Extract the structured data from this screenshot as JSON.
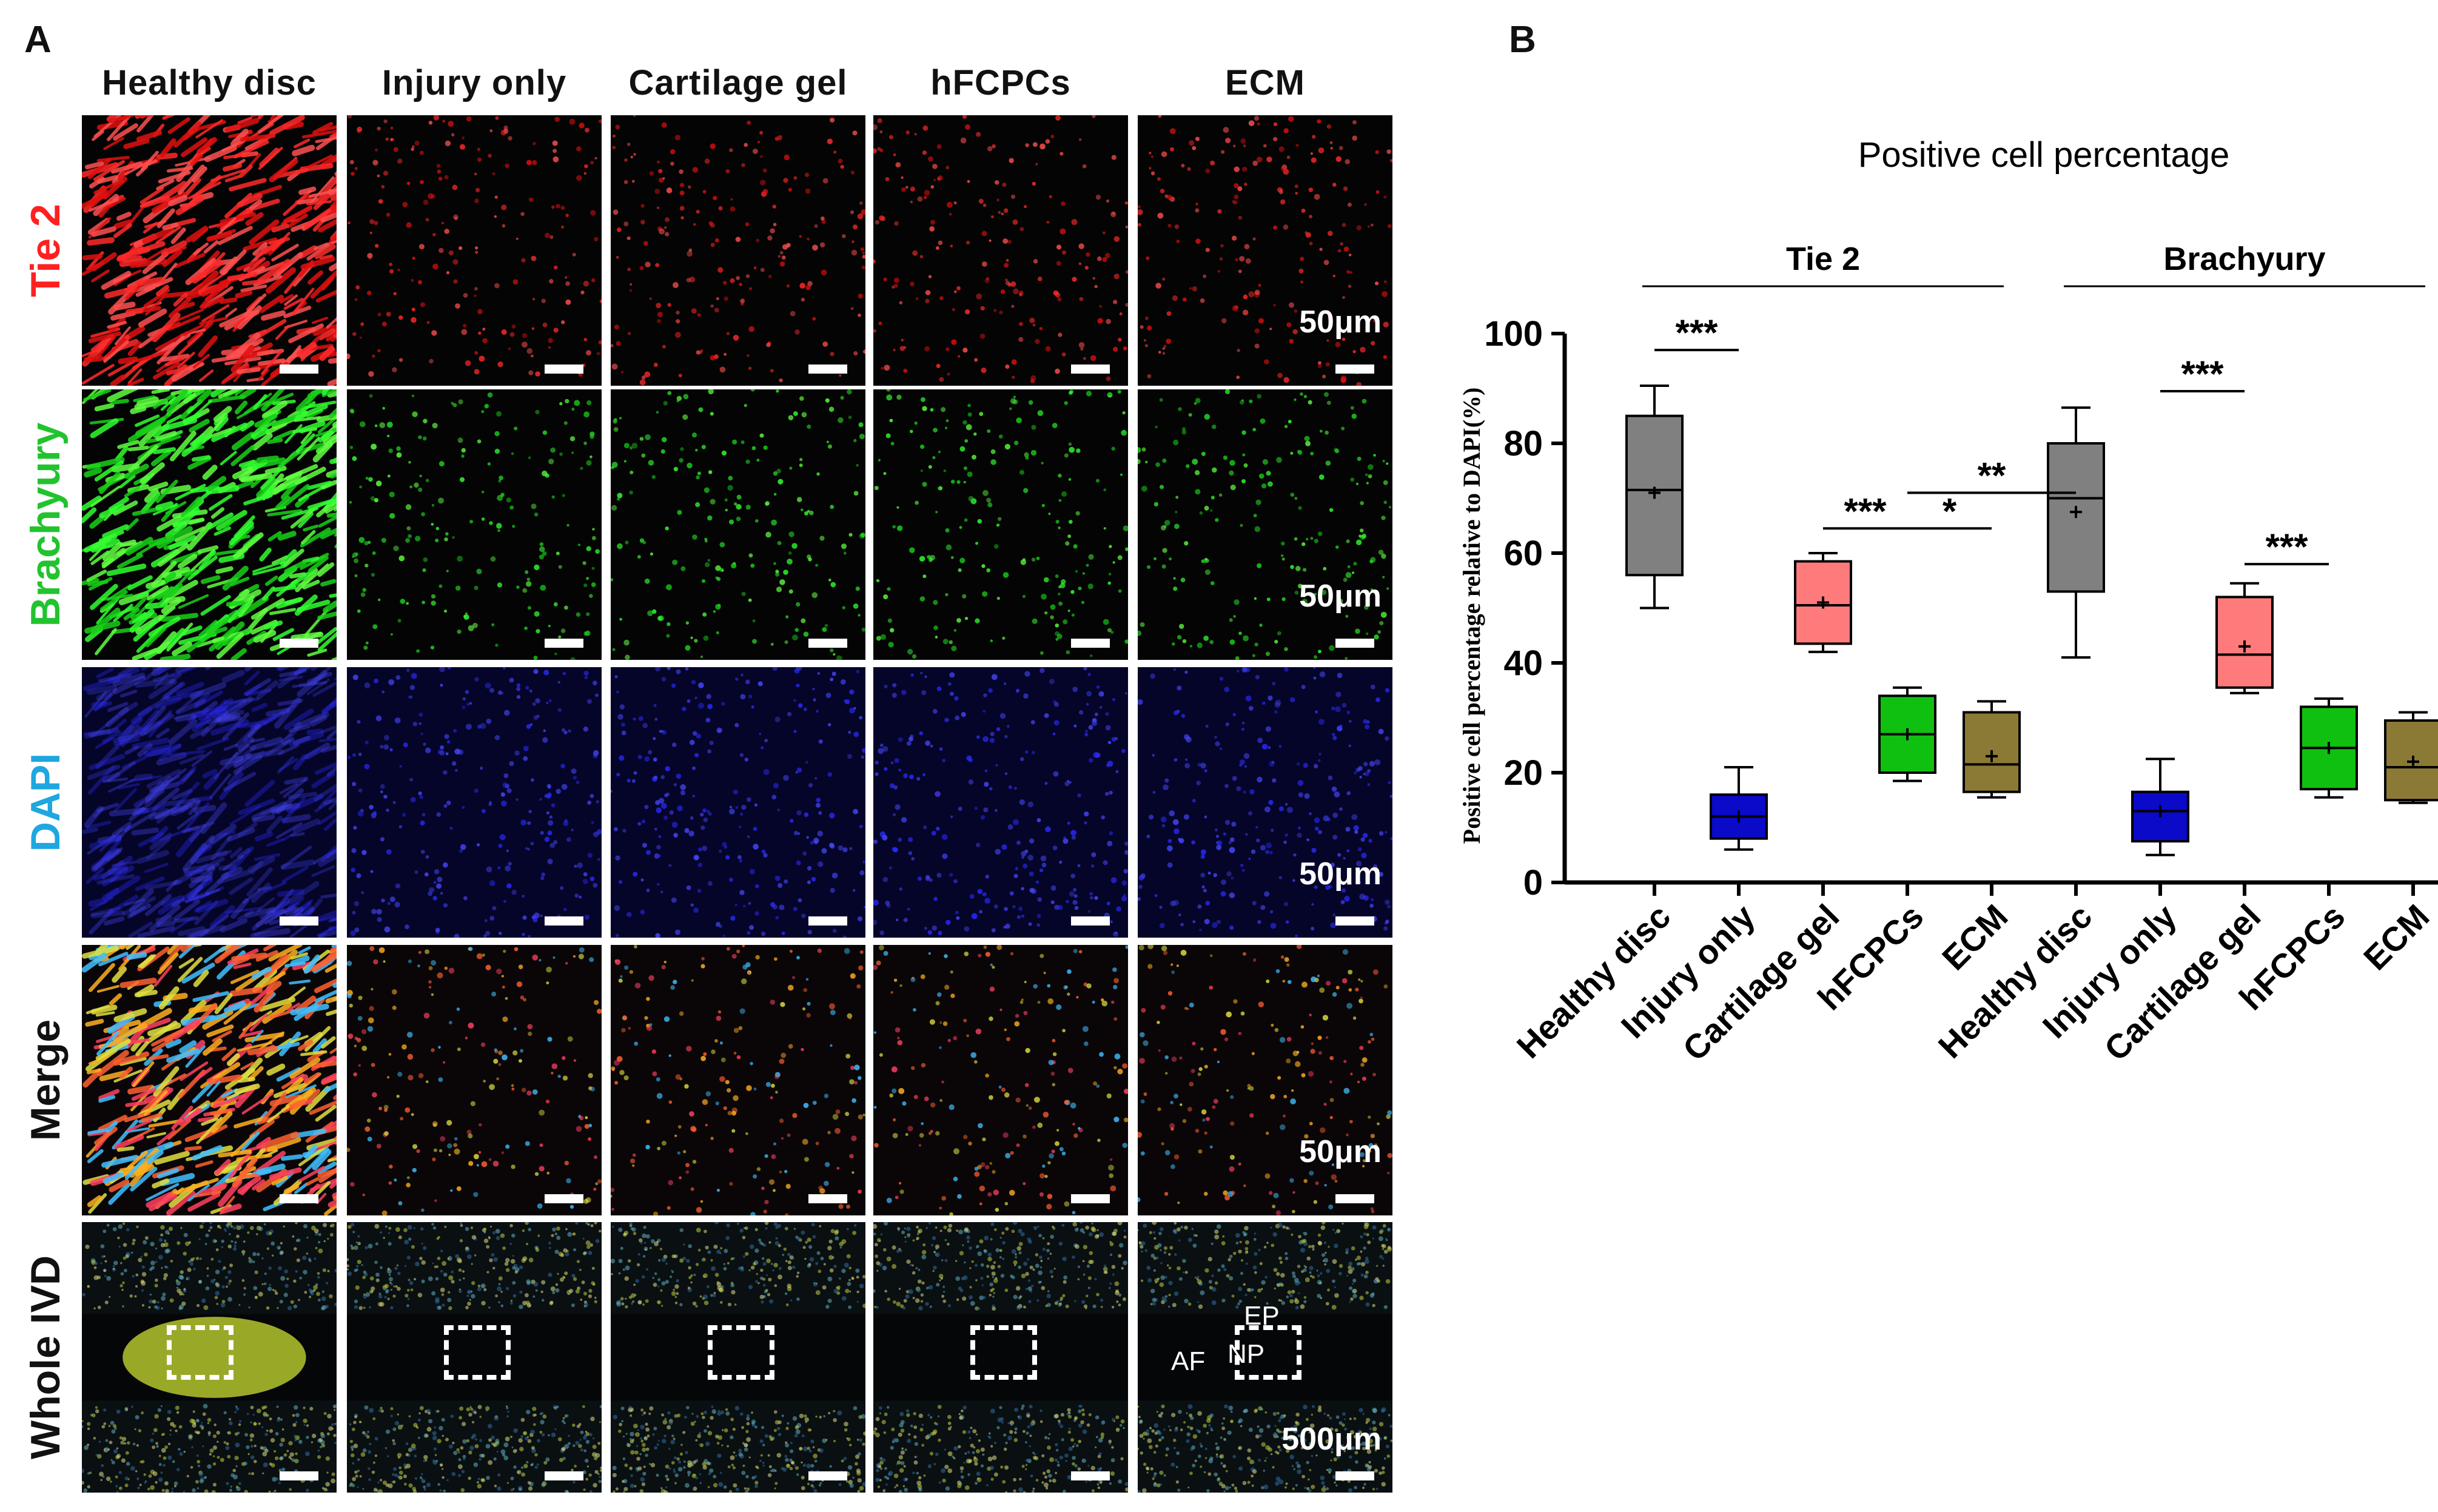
{
  "panels": {
    "a_letter": "A",
    "b_letter": "B"
  },
  "columns": [
    "Healthy disc",
    "Injury only",
    "Cartilage gel",
    "hFCPCs",
    "ECM"
  ],
  "rows": [
    {
      "label": "Tie 2",
      "color": "#ff2020",
      "scale": "50μm"
    },
    {
      "label": "Brachyury",
      "color": "#22c32e",
      "scale": "50μm"
    },
    {
      "label": "DAPI",
      "color": "#1ea7e0",
      "scale": "50μm"
    },
    {
      "label": "Merge",
      "color": "#111111",
      "scale": "50μm"
    },
    {
      "label": "Whole IVD",
      "color": "#111111",
      "scale": "500μm"
    }
  ],
  "region_labels": {
    "ep": "EP",
    "np": "NP",
    "af": "AF"
  },
  "chart_data": {
    "type": "box",
    "title": "Positive cell percentage",
    "ylabel": "Positive cell percentage relative to DAPI(%)",
    "ylim": [
      0,
      100
    ],
    "yticks": [
      0,
      20,
      40,
      60,
      80,
      100
    ],
    "groups": [
      {
        "name": "Tie 2",
        "boxes": [
          {
            "category": "Healthy disc",
            "min": 50,
            "q1": 56,
            "median": 71.5,
            "q3": 85,
            "max": 90.5,
            "mean": 71,
            "color": "#808080"
          },
          {
            "category": "Injury only",
            "min": 6,
            "q1": 8,
            "median": 12,
            "q3": 16,
            "max": 21,
            "mean": 12,
            "color": "#0a0ac8"
          },
          {
            "category": "Cartilage gel",
            "min": 42,
            "q1": 43.5,
            "median": 50.5,
            "q3": 58.5,
            "max": 60,
            "mean": 51,
            "color": "#ff7b7b"
          },
          {
            "category": "hFCPCs",
            "min": 18.5,
            "q1": 20,
            "median": 27,
            "q3": 34,
            "max": 35.5,
            "mean": 27,
            "color": "#10c010"
          },
          {
            "category": "ECM",
            "min": 15.5,
            "q1": 16.5,
            "median": 21.5,
            "q3": 31,
            "max": 33,
            "mean": 23,
            "color": "#8b7a35"
          }
        ]
      },
      {
        "name": "Brachyury",
        "boxes": [
          {
            "category": "Healthy disc",
            "min": 41,
            "q1": 53,
            "median": 70,
            "q3": 80,
            "max": 86.5,
            "mean": 67.5,
            "color": "#808080"
          },
          {
            "category": "Injury only",
            "min": 5,
            "q1": 7.5,
            "median": 13,
            "q3": 16.5,
            "max": 22.5,
            "mean": 13,
            "color": "#0a0ac8"
          },
          {
            "category": "Cartilage gel",
            "min": 34.5,
            "q1": 35.5,
            "median": 41.5,
            "q3": 52,
            "max": 54.5,
            "mean": 43,
            "color": "#ff7b7b"
          },
          {
            "category": "hFCPCs",
            "min": 15.5,
            "q1": 17,
            "median": 24.5,
            "q3": 32,
            "max": 33.5,
            "mean": 24.5,
            "color": "#10c010"
          },
          {
            "category": "ECM",
            "min": 14.5,
            "q1": 15,
            "median": 21,
            "q3": 29.5,
            "max": 31,
            "mean": 22,
            "color": "#8b7a35"
          }
        ]
      }
    ],
    "significance": [
      {
        "label": "***",
        "from": 0,
        "to": 1,
        "y": 97
      },
      {
        "label": "***",
        "from": 2,
        "to": 3,
        "y": 64.5
      },
      {
        "label": "*",
        "from": 3,
        "to": 4,
        "y": 64.5
      },
      {
        "label": "**",
        "from": 3,
        "to": 5,
        "y": 71
      },
      {
        "label": "***",
        "from": 6,
        "to": 7,
        "y": 89.5
      },
      {
        "label": "***",
        "from": 7,
        "to": 8,
        "y": 58
      }
    ]
  }
}
